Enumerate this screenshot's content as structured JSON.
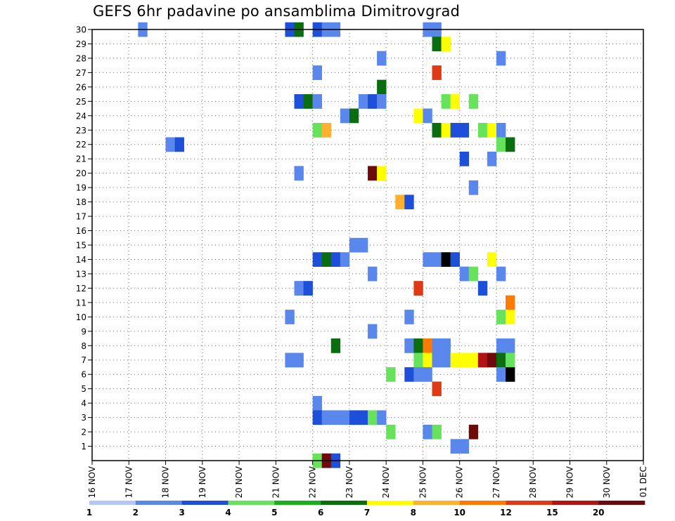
{
  "chart_data": {
    "type": "heatmap",
    "title": "GEFS 6hr padavine po ansamblima Dimitrovgrad",
    "x_ticks": [
      "16 NOV",
      "17 NOV",
      "18 NOV",
      "19 NOV",
      "20 NOV",
      "21 NOV",
      "22 NOV",
      "23 NOV",
      "24 NOV",
      "25 NOV",
      "26 NOV",
      "27 NOV",
      "28 NOV",
      "29 NOV",
      "30 NOV",
      "01 DEC"
    ],
    "y_ticks": [
      1,
      2,
      3,
      4,
      5,
      6,
      7,
      8,
      9,
      10,
      11,
      12,
      13,
      14,
      15,
      16,
      17,
      18,
      19,
      20,
      21,
      22,
      23,
      24,
      25,
      26,
      27,
      28,
      29,
      30
    ],
    "x_unit": "6-hour steps from 16 NOV 00Z",
    "y_range": [
      0,
      30
    ],
    "grid": true,
    "legend_placement": "bottom",
    "legend": {
      "labels": [
        "1",
        "2",
        "3",
        "4",
        "5",
        "6",
        "7",
        "8",
        "10",
        "12",
        "15",
        "20"
      ],
      "colors": [
        "#b4c8f5",
        "#5a87eb",
        "#1e4fd8",
        "#66e35a",
        "#1ab01a",
        "#0a6e10",
        "#ffff00",
        "#ffb030",
        "#ff7a00",
        "#e03a14",
        "#b01414",
        "#6e0a0a"
      ]
    },
    "cells": [
      [
        5,
        30,
        1
      ],
      [
        21,
        30,
        2
      ],
      [
        22,
        30,
        5
      ],
      [
        24,
        30,
        2
      ],
      [
        25,
        30,
        1
      ],
      [
        26,
        30,
        1
      ],
      [
        36,
        30,
        1
      ],
      [
        37,
        30,
        1
      ],
      [
        37,
        29,
        5
      ],
      [
        38,
        29,
        6
      ],
      [
        31,
        28,
        1
      ],
      [
        44,
        28,
        1
      ],
      [
        24,
        27,
        1
      ],
      [
        37,
        27,
        9
      ],
      [
        31,
        26,
        5
      ],
      [
        22,
        25,
        2
      ],
      [
        23,
        25,
        5
      ],
      [
        24,
        25,
        1
      ],
      [
        29,
        25,
        1
      ],
      [
        30,
        25,
        2
      ],
      [
        31,
        25,
        1
      ],
      [
        38,
        25,
        3
      ],
      [
        39,
        25,
        6
      ],
      [
        41,
        25,
        3
      ],
      [
        27,
        24,
        1
      ],
      [
        28,
        24,
        5
      ],
      [
        35,
        24,
        6
      ],
      [
        36,
        24,
        1
      ],
      [
        24,
        23,
        3
      ],
      [
        25,
        23,
        7
      ],
      [
        37,
        23,
        5
      ],
      [
        38,
        23,
        6
      ],
      [
        39,
        23,
        2
      ],
      [
        40,
        23,
        2
      ],
      [
        42,
        23,
        3
      ],
      [
        43,
        23,
        6
      ],
      [
        44,
        23,
        1
      ],
      [
        8,
        22,
        1
      ],
      [
        9,
        22,
        2
      ],
      [
        44,
        22,
        3
      ],
      [
        45,
        22,
        5
      ],
      [
        40,
        21,
        2
      ],
      [
        43,
        21,
        1
      ],
      [
        22,
        20,
        1
      ],
      [
        30,
        20,
        11
      ],
      [
        31,
        20,
        6
      ],
      [
        41,
        19,
        1
      ],
      [
        33,
        18,
        7
      ],
      [
        34,
        18,
        2
      ],
      [
        28,
        15,
        1
      ],
      [
        29,
        15,
        1
      ],
      [
        24,
        14,
        2
      ],
      [
        25,
        14,
        5
      ],
      [
        26,
        14,
        2
      ],
      [
        27,
        14,
        1
      ],
      [
        36,
        14,
        1
      ],
      [
        37,
        14,
        1
      ],
      [
        38,
        14,
        13
      ],
      [
        39,
        14,
        2
      ],
      [
        43,
        14,
        6
      ],
      [
        30,
        13,
        1
      ],
      [
        40,
        13,
        1
      ],
      [
        41,
        13,
        3
      ],
      [
        44,
        13,
        1
      ],
      [
        22,
        12,
        1
      ],
      [
        23,
        12,
        2
      ],
      [
        35,
        12,
        9
      ],
      [
        42,
        12,
        2
      ],
      [
        45,
        11,
        8
      ],
      [
        21,
        10,
        1
      ],
      [
        34,
        10,
        1
      ],
      [
        44,
        10,
        3
      ],
      [
        45,
        10,
        6
      ],
      [
        30,
        9,
        1
      ],
      [
        26,
        8,
        5
      ],
      [
        34,
        8,
        1
      ],
      [
        35,
        8,
        5
      ],
      [
        36,
        8,
        8
      ],
      [
        37,
        8,
        1
      ],
      [
        38,
        8,
        1
      ],
      [
        44,
        8,
        1
      ],
      [
        45,
        8,
        1
      ],
      [
        21,
        7,
        1
      ],
      [
        22,
        7,
        1
      ],
      [
        35,
        7,
        3
      ],
      [
        36,
        7,
        6
      ],
      [
        37,
        7,
        1
      ],
      [
        38,
        7,
        1
      ],
      [
        39,
        7,
        6
      ],
      [
        40,
        7,
        6
      ],
      [
        41,
        7,
        6
      ],
      [
        42,
        7,
        10
      ],
      [
        43,
        7,
        11
      ],
      [
        44,
        7,
        5
      ],
      [
        45,
        7,
        3
      ],
      [
        32,
        6,
        3
      ],
      [
        34,
        6,
        2
      ],
      [
        35,
        6,
        1
      ],
      [
        36,
        6,
        1
      ],
      [
        44,
        6,
        1
      ],
      [
        45,
        6,
        12
      ],
      [
        37,
        5,
        9
      ],
      [
        24,
        4,
        1
      ],
      [
        24,
        3,
        2
      ],
      [
        25,
        3,
        1
      ],
      [
        26,
        3,
        1
      ],
      [
        27,
        3,
        1
      ],
      [
        28,
        3,
        2
      ],
      [
        29,
        3,
        2
      ],
      [
        30,
        3,
        3
      ],
      [
        31,
        3,
        1
      ],
      [
        32,
        2,
        3
      ],
      [
        36,
        2,
        1
      ],
      [
        37,
        2,
        3
      ],
      [
        41,
        2,
        11
      ],
      [
        39,
        1,
        1
      ],
      [
        40,
        1,
        1
      ],
      [
        24,
        0,
        3
      ],
      [
        25,
        0,
        11
      ],
      [
        26,
        0,
        2
      ]
    ]
  }
}
